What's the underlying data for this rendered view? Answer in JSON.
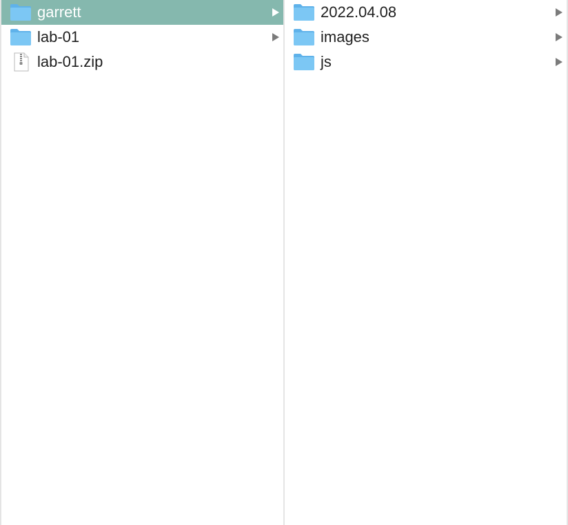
{
  "columns": [
    {
      "items": [
        {
          "label": "garrett",
          "kind": "folder",
          "selected": true,
          "has_children": true
        },
        {
          "label": "lab-01",
          "kind": "folder",
          "selected": false,
          "has_children": true
        },
        {
          "label": "lab-01.zip",
          "kind": "zip-file",
          "selected": false,
          "has_children": false
        }
      ]
    },
    {
      "items": [
        {
          "label": "2022.04.08",
          "kind": "folder",
          "selected": false,
          "has_children": true
        },
        {
          "label": "images",
          "kind": "folder",
          "selected": false,
          "has_children": true
        },
        {
          "label": "js",
          "kind": "folder",
          "selected": false,
          "has_children": true
        }
      ]
    }
  ],
  "colors": {
    "selection": "#85b8ae",
    "folder_body": "#7cc7f4",
    "folder_tab": "#5fb2ea",
    "chevron": "#7b7b7b",
    "chevron_selected": "#ffffff"
  }
}
